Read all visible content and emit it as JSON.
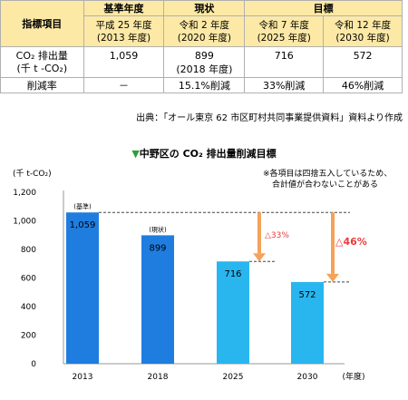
{
  "table": {
    "header_item": "指標項目",
    "header_base": "基準年度",
    "header_current": "現状",
    "header_target": "目標",
    "base_year": [
      "平成 25 年度",
      "(2013 年度)"
    ],
    "current_year": [
      "令和 2 年度",
      "(2020 年度)"
    ],
    "target_year1": [
      "令和 7 年度",
      "(2025 年度)"
    ],
    "target_year2": [
      "令和 12 年度",
      "(2030 年度)"
    ],
    "row1_label": [
      "CO₂ 排出量",
      "(千 t -CO₂)"
    ],
    "row1_base": "1,059",
    "row1_current": "899",
    "row1_current_note": "(2018 年度)",
    "row1_t1": "716",
    "row1_t2": "572",
    "row2_label": "削減率",
    "row2_base": "－",
    "row2_current": "15.1%削減",
    "row2_t1": "33%削減",
    "row2_t2": "46%削減"
  },
  "source": "出典：「オール東京 62 市区町村共同事業提供資料」資料より作成",
  "chart_title_marker": "▼",
  "chart_title": "中野区の CO₂ 排出量削減目標",
  "note": [
    "※各項目は四捨五入しているため、",
    "合計値が合わないことがある"
  ],
  "colors": {
    "bar_base": "#1f7de0",
    "bar_target": "#29b6ef",
    "arrow": "#f5a25a",
    "reduction_text": "#ea3b3b",
    "header_bg": "#fde9a6"
  },
  "chart_data": {
    "type": "bar",
    "categories": [
      "2013",
      "2018",
      "2025",
      "2030"
    ],
    "values": [
      1059,
      899,
      716,
      572
    ],
    "data_labels": [
      "1,059",
      "899",
      "716",
      "572"
    ],
    "bar_tags": [
      "(基準)",
      "(現状)",
      "",
      ""
    ],
    "ylabel": "(千 t-CO₂)",
    "xlabel": "(年度)",
    "ylim": [
      0,
      1200
    ],
    "yticks": [
      0,
      200,
      400,
      600,
      800,
      1000,
      1200
    ],
    "ytick_labels": [
      "0",
      "200",
      "400",
      "600",
      "800",
      "1,000",
      "1,200"
    ],
    "annotations": [
      {
        "text": "△33%",
        "from": 1059,
        "to": 716,
        "at": "2025"
      },
      {
        "text": "△46%",
        "from": 1059,
        "to": 572,
        "at": "2030"
      }
    ]
  }
}
